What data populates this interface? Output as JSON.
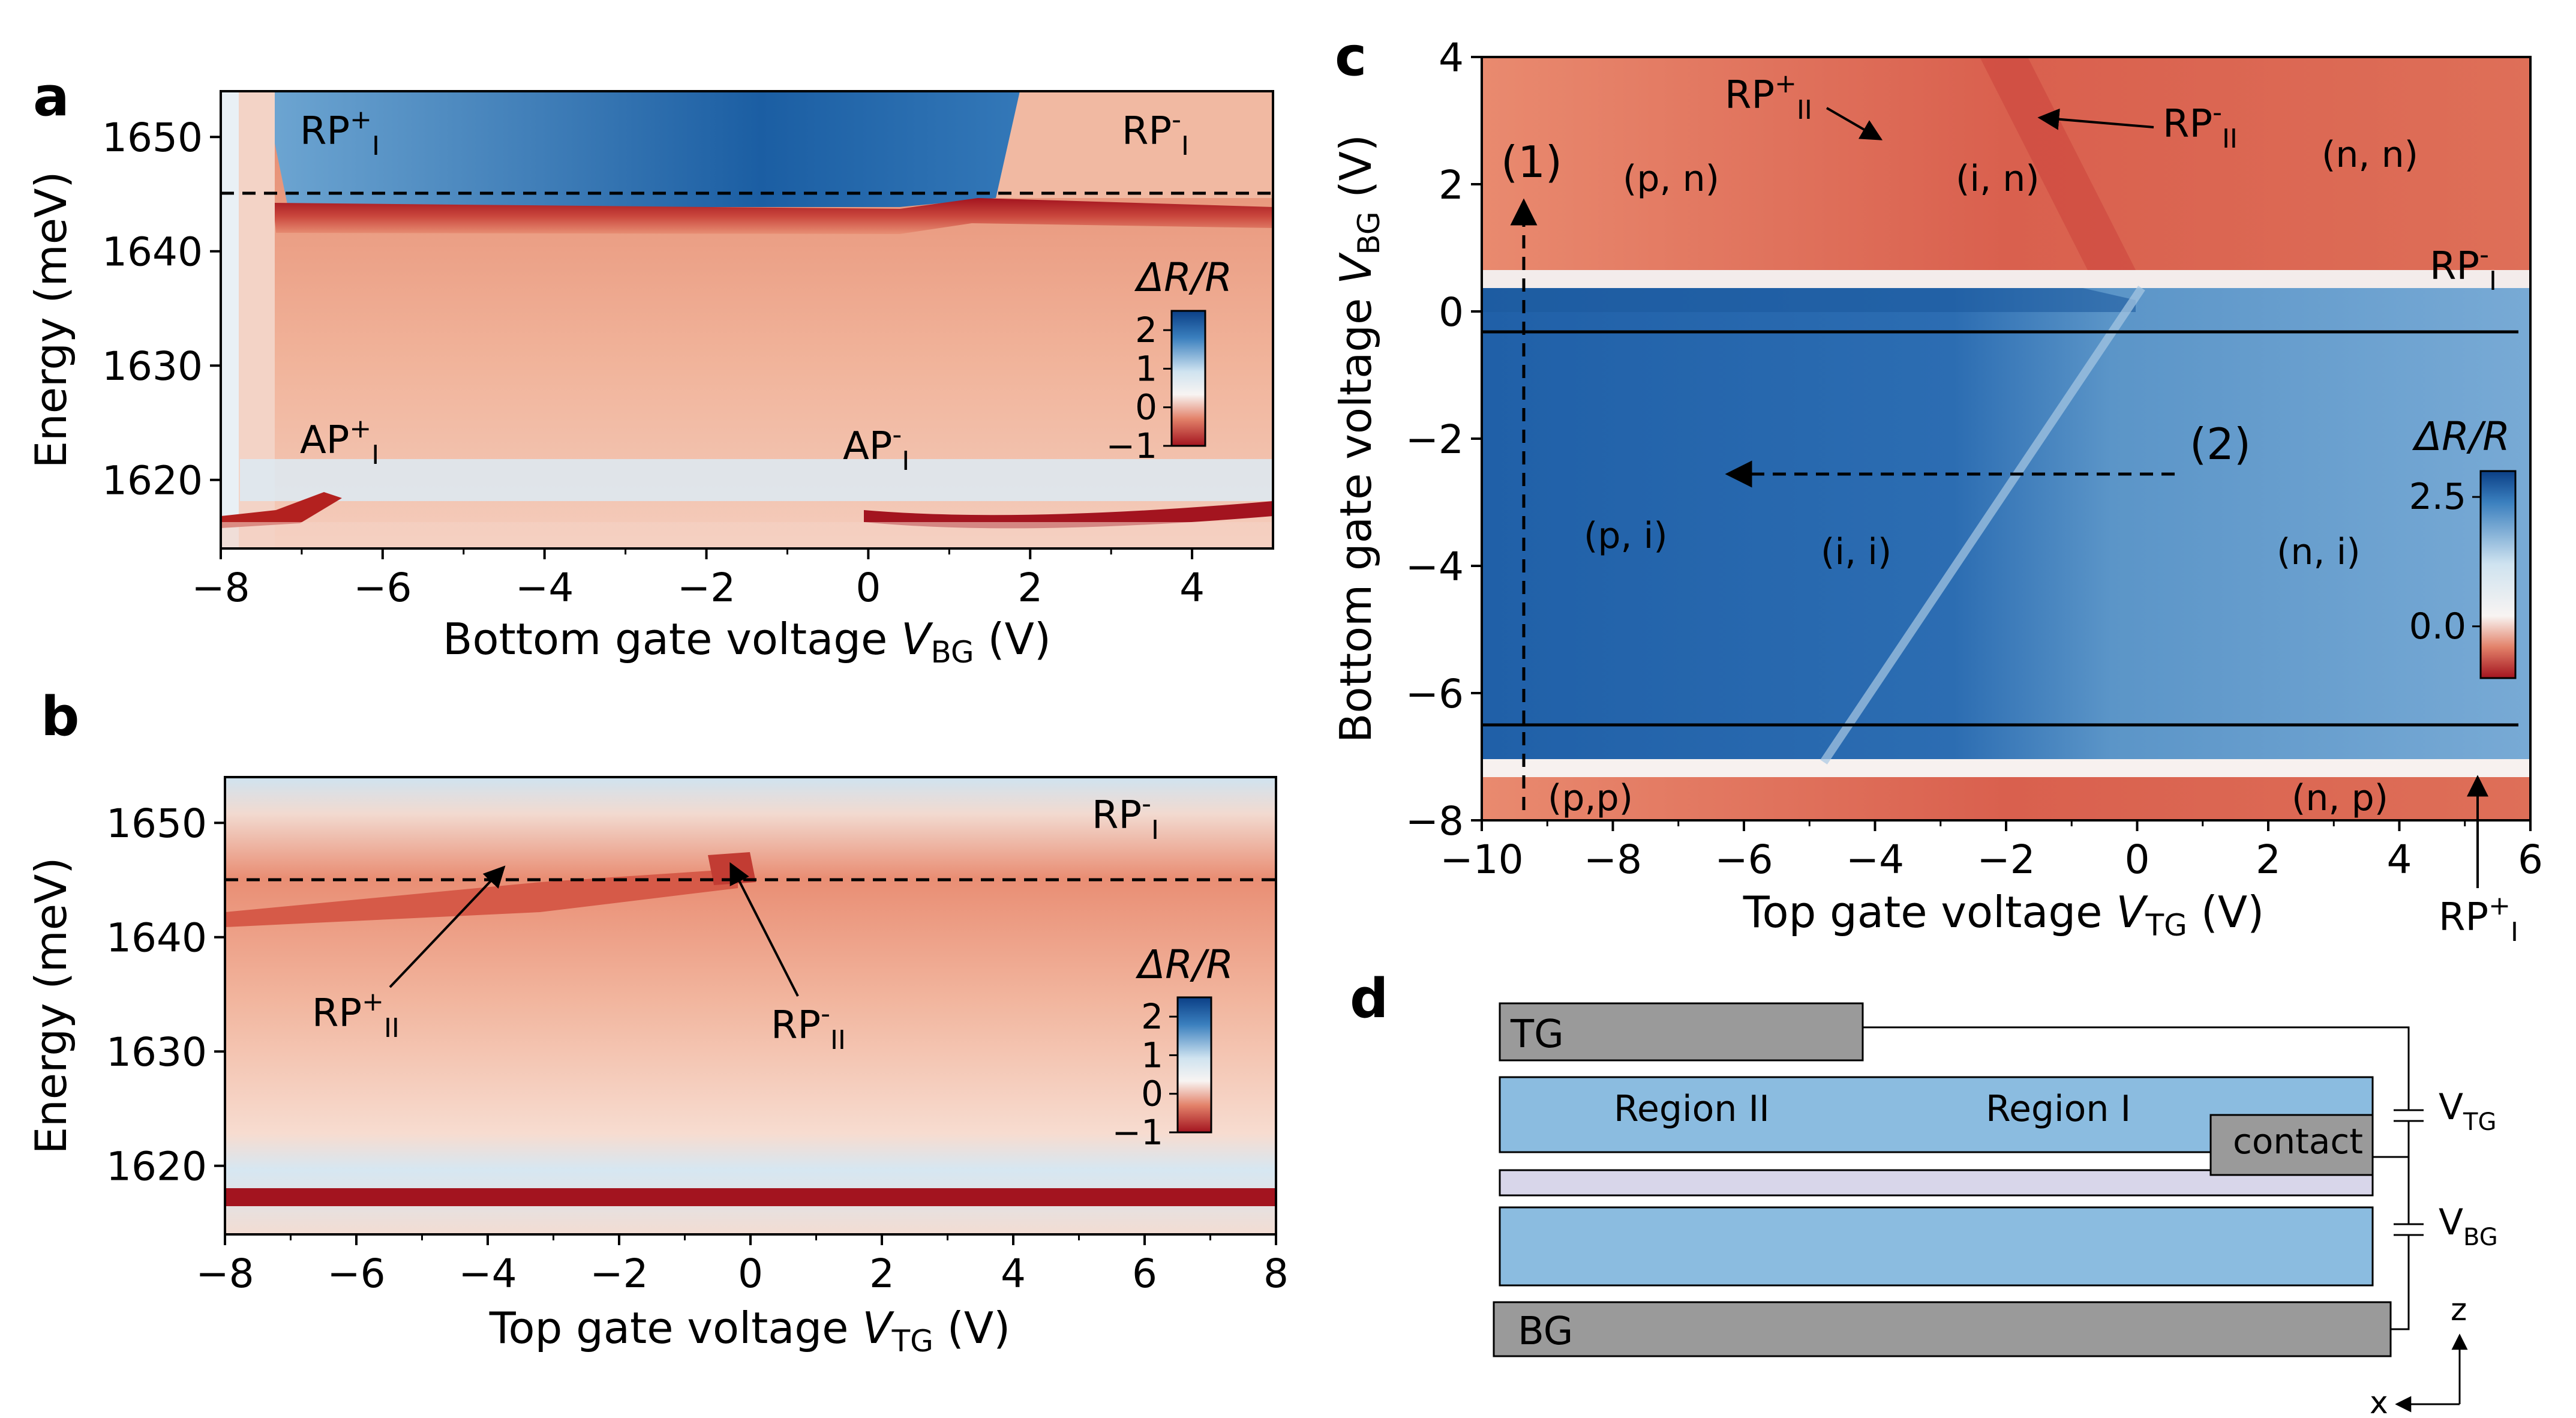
{
  "colors": {
    "blue_dark": "#0b3f86",
    "blue_mid": "#3a7fbe",
    "blue_light": "#cfe3f0",
    "white": "#f8f4f2",
    "red_light": "#f2c3ac",
    "red_mid": "#e3826a",
    "red_dark": "#a3141f",
    "device_blue": "#8bbce0",
    "device_gray": "#9a9a9a",
    "device_lavender": "#d8d6ea"
  },
  "chart_data": [
    {
      "panel": "a",
      "type": "heatmap",
      "xlabel_prefix": "Bottom gate voltage ",
      "xlabel_var": "V",
      "xlabel_sub": "BG",
      "xlabel_suffix": " (V)",
      "ylabel": "Energy (meV)",
      "xlim": [
        -8,
        5
      ],
      "ylim": [
        1614,
        1654
      ],
      "xticks": [
        "−8",
        "−6",
        "−4",
        "−2",
        "0",
        "2",
        "4"
      ],
      "xtick_values": [
        -8,
        -6,
        -4,
        -2,
        0,
        2,
        4
      ],
      "yticks": [
        "1620",
        "1630",
        "1640",
        "1650"
      ],
      "ytick_values": [
        1620,
        1630,
        1640,
        1650
      ],
      "dashed_line_energy": 1645,
      "colorbar": {
        "label": "ΔR/R",
        "ticks": [
          "2",
          "1",
          "0",
          "−1"
        ],
        "range": [
          -1,
          2.5
        ]
      },
      "annotations": [
        {
          "base": "RP",
          "sup": "+",
          "sub": "I"
        },
        {
          "base": "RP",
          "sup": "-",
          "sub": "I"
        },
        {
          "base": "AP",
          "sup": "+",
          "sub": "I"
        },
        {
          "base": "AP",
          "sup": "-",
          "sub": "I"
        }
      ]
    },
    {
      "panel": "b",
      "type": "heatmap",
      "xlabel_prefix": "Top gate voltage ",
      "xlabel_var": "V",
      "xlabel_sub": "TG",
      "xlabel_suffix": " (V)",
      "ylabel": "Energy (meV)",
      "xlim": [
        -8,
        8
      ],
      "ylim": [
        1614,
        1654
      ],
      "xticks": [
        "−8",
        "−6",
        "−4",
        "−2",
        "0",
        "2",
        "4",
        "6",
        "8"
      ],
      "xtick_values": [
        -8,
        -6,
        -4,
        -2,
        0,
        2,
        4,
        6,
        8
      ],
      "yticks": [
        "1620",
        "1630",
        "1640",
        "1650"
      ],
      "ytick_values": [
        1620,
        1630,
        1640,
        1650
      ],
      "dashed_line_energy": 1645,
      "colorbar": {
        "label": "ΔR/R",
        "ticks": [
          "2",
          "1",
          "0",
          "−1"
        ],
        "range": [
          -1,
          2.5
        ]
      },
      "annotations": [
        {
          "base": "RP",
          "sup": "-",
          "sub": "I"
        },
        {
          "base": "RP",
          "sup": "+",
          "sub": "II"
        },
        {
          "base": "RP",
          "sup": "-",
          "sub": "II"
        }
      ]
    },
    {
      "panel": "c",
      "type": "heatmap",
      "xlabel_prefix": "Top gate voltage ",
      "xlabel_var": "V",
      "xlabel_sub": "TG",
      "xlabel_suffix": " (V)",
      "ylabel_prefix": "Bottom gate voltage ",
      "ylabel_var": "V",
      "ylabel_sub": "BG",
      "ylabel_suffix": " (V)",
      "xlim": [
        -10,
        6
      ],
      "ylim": [
        -8,
        4
      ],
      "xticks": [
        "−10",
        "−8",
        "−6",
        "−4",
        "−2",
        "0",
        "2",
        "4",
        "6"
      ],
      "xtick_values": [
        -10,
        -8,
        -6,
        -4,
        -2,
        0,
        2,
        4,
        6
      ],
      "yticks": [
        "−8",
        "−6",
        "−4",
        "−2",
        "0",
        "2",
        "4"
      ],
      "ytick_values": [
        -8,
        -6,
        -4,
        -2,
        0,
        2,
        4
      ],
      "solid_lines_vbg": [
        -0.3,
        -6.5
      ],
      "colorbar": {
        "label": "ΔR/R",
        "ticks": [
          "2.5",
          "0.0"
        ],
        "range": [
          -1,
          3
        ]
      },
      "regions": [
        "(p, n)",
        "(i, n)",
        "(n, n)",
        "(p, i)",
        "(i, i)",
        "(n, i)",
        "(p,p)",
        "(n, p)"
      ],
      "path_labels": [
        "(1)",
        "(2)"
      ],
      "annotations": [
        {
          "base": "RP",
          "sup": "+",
          "sub": "II"
        },
        {
          "base": "RP",
          "sup": "-",
          "sub": "II"
        },
        {
          "base": "RP",
          "sup": "-",
          "sub": "I"
        },
        {
          "base": "RP",
          "sup": "+",
          "sub": "I"
        }
      ]
    }
  ],
  "panel_labels": [
    "a",
    "b",
    "c",
    "d"
  ],
  "device": {
    "tg": "TG",
    "bg": "BG",
    "region2": "Region II",
    "region1": "Region I",
    "contact": "contact",
    "v_tg_base": "V",
    "v_tg_sub": "TG",
    "v_bg_base": "V",
    "v_bg_sub": "BG",
    "axis_z": "z",
    "axis_x": "x"
  }
}
